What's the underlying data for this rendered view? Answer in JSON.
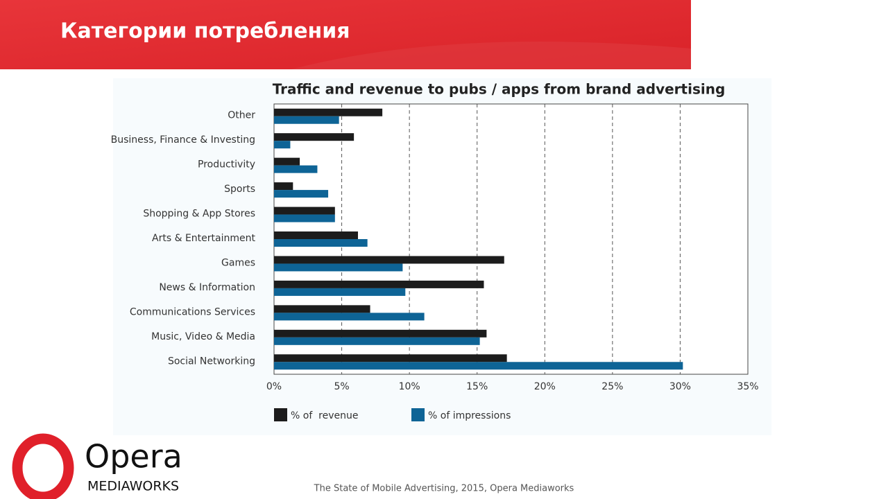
{
  "header": {
    "title": "Категории потребления"
  },
  "chart_data": {
    "type": "hbar",
    "title": "Traffic and revenue to pubs / apps from brand advertising",
    "categories": [
      "Other",
      "Business, Finance & Investing",
      "Productivity",
      "Sports",
      "Shopping & App Stores",
      "Arts & Entertainment",
      "Games",
      "News & Information",
      "Communications Services",
      "Music, Video & Media",
      "Social Networking"
    ],
    "series": [
      {
        "name": "% of  revenue",
        "color": "#1c1c1c",
        "values": [
          8.0,
          5.9,
          1.9,
          1.4,
          4.5,
          6.2,
          17.0,
          15.5,
          7.1,
          15.7,
          17.2
        ]
      },
      {
        "name": "% of impressions",
        "color": "#0e6496",
        "values": [
          4.8,
          1.2,
          3.2,
          4.0,
          4.5,
          6.9,
          9.5,
          9.7,
          11.1,
          15.2,
          30.2
        ]
      }
    ],
    "xlim": [
      0,
      35
    ],
    "xticks": [
      {
        "value": 0,
        "label": "0%"
      },
      {
        "value": 5,
        "label": "5%"
      },
      {
        "value": 10,
        "label": "10%"
      },
      {
        "value": 15,
        "label": "15%"
      },
      {
        "value": 20,
        "label": "20%"
      },
      {
        "value": 25,
        "label": "25%"
      },
      {
        "value": 30,
        "label": "30%"
      },
      {
        "value": 35,
        "label": "35%"
      }
    ],
    "grid": true,
    "legend": "bottom"
  },
  "logo": {
    "name": "Opera",
    "subtitle": "MEDIAWORKS"
  },
  "footer": {
    "source": "The State of Mobile Advertising, 2015, Opera Mediaworks"
  }
}
